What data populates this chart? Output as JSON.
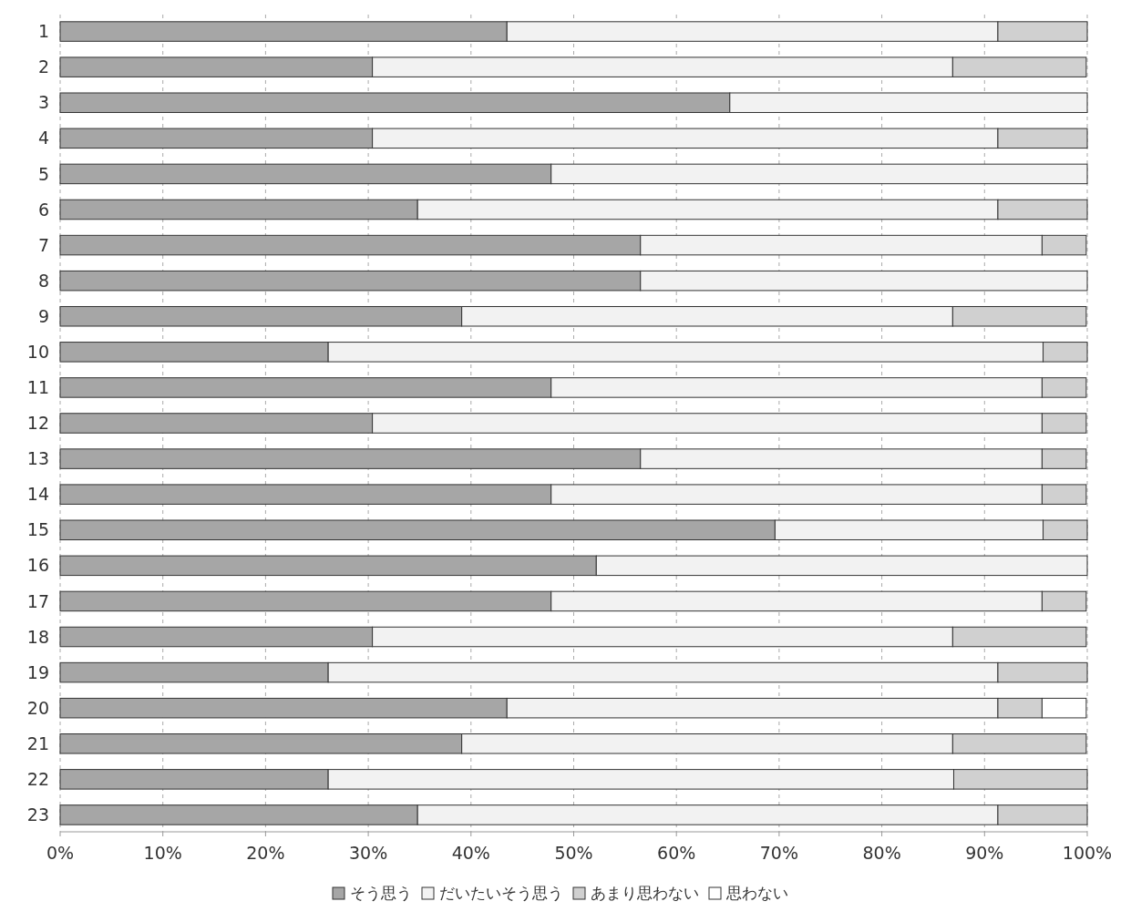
{
  "chart_data": {
    "type": "bar",
    "orientation": "horizontal",
    "stacked": true,
    "categories": [
      "1",
      "2",
      "3",
      "4",
      "5",
      "6",
      "7",
      "8",
      "9",
      "10",
      "11",
      "12",
      "13",
      "14",
      "15",
      "16",
      "17",
      "18",
      "19",
      "20",
      "21",
      "22",
      "23"
    ],
    "series": [
      {
        "name": "そう思う",
        "color": "#a6a6a6",
        "values": [
          43.5,
          30.4,
          65.2,
          30.4,
          47.8,
          34.8,
          56.5,
          56.5,
          39.1,
          26.1,
          47.8,
          30.4,
          56.5,
          47.8,
          69.6,
          52.2,
          47.8,
          30.4,
          26.1,
          43.5,
          39.1,
          26.1,
          34.8
        ]
      },
      {
        "name": "だいたいそう思う",
        "color": "#f2f2f2",
        "values": [
          47.8,
          56.5,
          34.8,
          60.9,
          52.2,
          56.5,
          39.1,
          43.5,
          47.8,
          69.6,
          47.8,
          65.2,
          39.1,
          47.8,
          26.1,
          47.8,
          47.8,
          56.5,
          65.2,
          47.8,
          47.8,
          60.9,
          56.5
        ]
      },
      {
        "name": "あまり思わない",
        "color": "#d0d0d0",
        "values": [
          8.7,
          13.0,
          0,
          8.7,
          0,
          8.7,
          4.3,
          0,
          13.0,
          4.3,
          4.3,
          4.3,
          4.3,
          4.3,
          4.3,
          0,
          4.3,
          13.0,
          8.7,
          4.3,
          13.0,
          13.0,
          8.7
        ]
      },
      {
        "name": "思わない",
        "color": "#ffffff",
        "values": [
          0,
          0,
          0,
          0,
          0,
          0,
          0,
          0,
          0,
          0,
          0,
          0,
          0,
          0,
          0,
          0,
          0,
          0,
          0,
          4.3,
          0,
          0,
          0
        ]
      }
    ],
    "xlim": [
      0,
      100
    ],
    "xticks": [
      {
        "value": 0,
        "label": "0%"
      },
      {
        "value": 10,
        "label": "10%"
      },
      {
        "value": 20,
        "label": "20%"
      },
      {
        "value": 30,
        "label": "30%"
      },
      {
        "value": 40,
        "label": "40%"
      },
      {
        "value": 50,
        "label": "50%"
      },
      {
        "value": 60,
        "label": "60%"
      },
      {
        "value": 70,
        "label": "70%"
      },
      {
        "value": 80,
        "label": "80%"
      },
      {
        "value": 90,
        "label": "90%"
      },
      {
        "value": 100,
        "label": "100%"
      }
    ],
    "grid": "x",
    "legend": "bottom"
  }
}
